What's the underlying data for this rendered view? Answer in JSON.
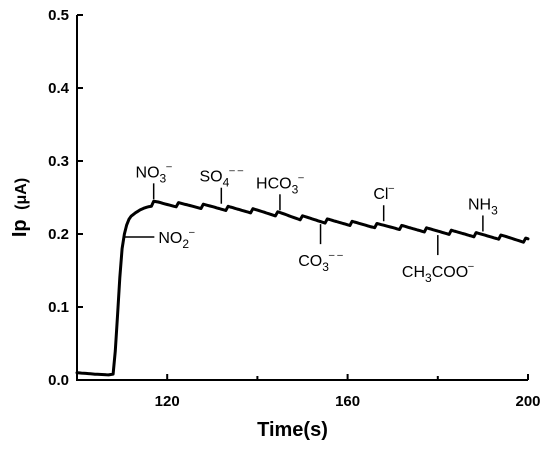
{
  "chart_data": {
    "type": "line",
    "xlabel": "Time(s)",
    "ylabel": "Ip",
    "ylabel_unit": "(μA)",
    "xlim": [
      100,
      200
    ],
    "ylim": [
      0.0,
      0.5
    ],
    "xticks": [
      "120",
      "160",
      "200"
    ],
    "xtick_values": [
      120,
      160,
      200
    ],
    "yticks": [
      "0.0",
      "0.1",
      "0.2",
      "0.3",
      "0.4",
      "0.5"
    ],
    "ytick_values": [
      0.0,
      0.1,
      0.2,
      0.3,
      0.4,
      0.5
    ],
    "grid": false,
    "series": [
      {
        "color": "#000000",
        "x": [
          100,
          104,
          107,
          108,
          108.5,
          109,
          109.5,
          110,
          110.5,
          111,
          112,
          113,
          114,
          115,
          116,
          117,
          118,
          120,
          125,
          130,
          135,
          140,
          145,
          150,
          155,
          160,
          165,
          170,
          175,
          180,
          185,
          190,
          195,
          200
        ],
        "y": [
          0.01,
          0.008,
          0.007,
          0.008,
          0.04,
          0.09,
          0.14,
          0.18,
          0.2,
          0.212,
          0.222,
          0.228,
          0.233,
          0.237,
          0.24,
          0.242,
          0.242,
          0.241,
          0.239,
          0.237,
          0.234,
          0.231,
          0.227,
          0.222,
          0.218,
          0.215,
          0.212,
          0.21,
          0.207,
          0.204,
          0.201,
          0.198,
          0.195,
          0.191
        ]
      }
    ],
    "annotations": [
      {
        "name": "no2",
        "main": "NO",
        "sub": "2",
        "sup": "–",
        "x": 110.5,
        "y": 0.2,
        "pos": "right"
      },
      {
        "name": "no3",
        "main": "NO",
        "sub": "3",
        "sup": "–",
        "x": 117,
        "y": 0.242,
        "pos": "above"
      },
      {
        "name": "so4",
        "main": "SO",
        "sub": "4",
        "sup": "– –",
        "x": 132,
        "y": 0.236,
        "pos": "above"
      },
      {
        "name": "hco3",
        "main": "HCO",
        "sub": "3",
        "sup": "–",
        "x": 145,
        "y": 0.227,
        "pos": "above"
      },
      {
        "name": "co3",
        "main": "CO",
        "sub": "3",
        "sup": "– –",
        "x": 154,
        "y": 0.219,
        "pos": "below"
      },
      {
        "name": "cl",
        "main": "Cl",
        "sub": "",
        "sup": "–",
        "x": 168,
        "y": 0.212,
        "pos": "above"
      },
      {
        "name": "ch3coo",
        "main": "CH",
        "sub": "3",
        "rest": "COO",
        "sup": "–",
        "x": 180,
        "y": 0.204,
        "pos": "below"
      },
      {
        "name": "nh3",
        "main": "NH",
        "sub": "3",
        "sup": "",
        "x": 190,
        "y": 0.198,
        "pos": "above"
      }
    ]
  }
}
